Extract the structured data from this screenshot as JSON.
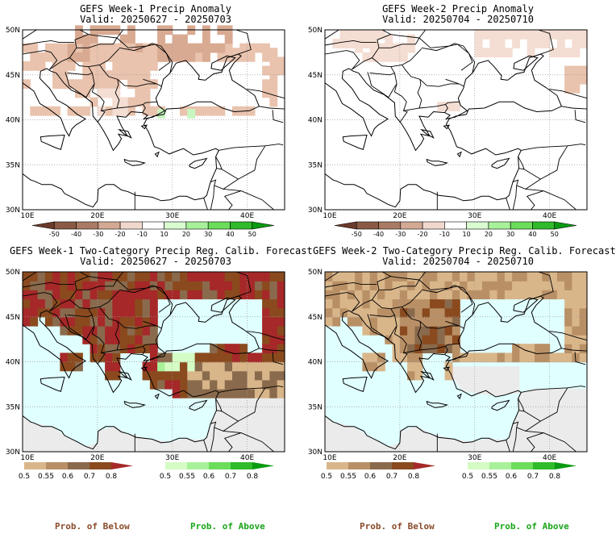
{
  "chart_data": [
    {
      "type": "heatmap",
      "title": "GEFS Week-1 Precip Anomaly",
      "subtitle": "Valid: 20250627 - 20250703",
      "xticks": [
        "10E",
        "20E",
        "30E",
        "40E"
      ],
      "yticks": [
        "30N",
        "35N",
        "40N",
        "45N",
        "50N"
      ],
      "xlim": [
        10,
        45
      ],
      "ylim": [
        30,
        50
      ],
      "colorbar_labels": [
        "-50",
        "-40",
        "-30",
        "-20",
        "-10",
        "10",
        "20",
        "30",
        "40",
        "50"
      ],
      "colorbar_colors": [
        "#6b3a2a",
        "#8a5a44",
        "#a97a64",
        "#d3a994",
        "#f2d8cc",
        "#ffffff",
        "#d8fcd0",
        "#a8f19a",
        "#6bdd5a",
        "#2fbb2a",
        "#0a9a12"
      ]
    },
    {
      "type": "heatmap",
      "title": "GEFS Week-2 Precip Anomaly",
      "subtitle": "Valid: 20250704 - 20250710",
      "xticks": [
        "10E",
        "20E",
        "30E",
        "40E"
      ],
      "yticks": [
        "30N",
        "35N",
        "40N",
        "45N",
        "50N"
      ],
      "xlim": [
        10,
        45
      ],
      "ylim": [
        30,
        50
      ],
      "colorbar_labels": [
        "-50",
        "-40",
        "-30",
        "-20",
        "-10",
        "10",
        "20",
        "30",
        "40",
        "50"
      ],
      "colorbar_colors": [
        "#6b3a2a",
        "#8a5a44",
        "#a97a64",
        "#d3a994",
        "#f2d8cc",
        "#ffffff",
        "#d8fcd0",
        "#a8f19a",
        "#6bdd5a",
        "#2fbb2a",
        "#0a9a12"
      ]
    },
    {
      "type": "heatmap",
      "title": "GEFS Week-1 Two-Category Precip Reg. Calib. Forecast",
      "subtitle": "Valid: 20250627 - 20250703",
      "xticks": [
        "10E",
        "20E",
        "30E",
        "40E"
      ],
      "yticks": [
        "30N",
        "35N",
        "40N",
        "45N",
        "50N"
      ],
      "xlim": [
        10,
        45
      ],
      "ylim": [
        30,
        50
      ],
      "below_labels": [
        "0.5",
        "0.55",
        "0.6",
        "0.7",
        "0.8"
      ],
      "above_labels": [
        "0.5",
        "0.55",
        "0.6",
        "0.7",
        "0.8"
      ],
      "below_colors": [
        "#d9b68a",
        "#b99066",
        "#8a6a4c",
        "#8a4a1e",
        "#a62828"
      ],
      "above_colors": [
        "#d4fcc4",
        "#a8f19a",
        "#6bdd5a",
        "#2fbb2a",
        "#0a9a12"
      ]
    },
    {
      "type": "heatmap",
      "title": "GEFS Week-2 Two-Category Precip Reg. Calib. Forecast",
      "subtitle": "Valid: 20250704 - 20250710",
      "xticks": [
        "10E",
        "20E",
        "30E",
        "40E"
      ],
      "yticks": [
        "30N",
        "35N",
        "40N",
        "45N",
        "50N"
      ],
      "xlim": [
        10,
        45
      ],
      "ylim": [
        30,
        50
      ],
      "below_labels": [
        "0.5",
        "0.55",
        "0.6",
        "0.7",
        "0.8"
      ],
      "above_labels": [
        "0.5",
        "0.55",
        "0.6",
        "0.7",
        "0.8"
      ],
      "below_colors": [
        "#d9b68a",
        "#b99066",
        "#8a6a4c",
        "#8a4a1e",
        "#a62828"
      ],
      "above_colors": [
        "#d4fcc4",
        "#a8f19a",
        "#6bdd5a",
        "#2fbb2a",
        "#0a9a12"
      ]
    }
  ],
  "footer": {
    "below_left": "Prob. of Below",
    "above_left": "Prob. of Above",
    "below_right": "Prob. of Below",
    "above_right": "Prob. of Above",
    "below_color": "#8a4a2a",
    "above_color": "#1aa51a"
  }
}
